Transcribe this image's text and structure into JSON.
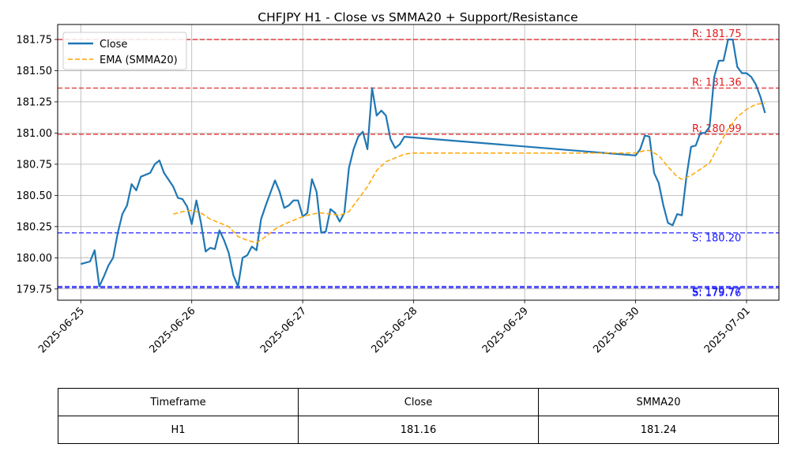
{
  "chart_data": {
    "type": "line",
    "title": "CHFJPY H1 - Close vs SMMA20 + Support/Resistance",
    "xlabel": "",
    "ylabel": "",
    "grid": true,
    "legend_position": "top-left",
    "xlim": [
      "2025-06-24T19:00",
      "2025-07-01T07:00"
    ],
    "ylim": [
      179.66,
      181.87
    ],
    "x_ticks": [
      "2025-06-25",
      "2025-06-26",
      "2025-06-27",
      "2025-06-28",
      "2025-06-29",
      "2025-06-30",
      "2025-07-01"
    ],
    "y_ticks": [
      "179.75",
      "180.00",
      "180.25",
      "180.50",
      "180.75",
      "181.00",
      "181.25",
      "181.50",
      "181.75"
    ],
    "series": [
      {
        "name": "Close",
        "color": "#1f77b4",
        "style": "solid",
        "points": [
          [
            "2025-06-25T00:00",
            179.95
          ],
          [
            "2025-06-25T02:00",
            179.97
          ],
          [
            "2025-06-25T03:00",
            180.06
          ],
          [
            "2025-06-25T04:00",
            179.77
          ],
          [
            "2025-06-25T05:00",
            179.85
          ],
          [
            "2025-06-25T06:00",
            179.94
          ],
          [
            "2025-06-25T07:00",
            180.0
          ],
          [
            "2025-06-25T08:00",
            180.2
          ],
          [
            "2025-06-25T09:00",
            180.35
          ],
          [
            "2025-06-25T10:00",
            180.42
          ],
          [
            "2025-06-25T11:00",
            180.59
          ],
          [
            "2025-06-25T12:00",
            180.54
          ],
          [
            "2025-06-25T13:00",
            180.65
          ],
          [
            "2025-06-25T15:00",
            180.68
          ],
          [
            "2025-06-25T16:00",
            180.75
          ],
          [
            "2025-06-25T17:00",
            180.78
          ],
          [
            "2025-06-25T18:00",
            180.68
          ],
          [
            "2025-06-25T20:00",
            180.57
          ],
          [
            "2025-06-25T21:00",
            180.48
          ],
          [
            "2025-06-25T22:00",
            180.47
          ],
          [
            "2025-06-25T23:00",
            180.41
          ],
          [
            "2025-06-26T00:00",
            180.27
          ],
          [
            "2025-06-26T01:00",
            180.46
          ],
          [
            "2025-06-26T02:00",
            180.28
          ],
          [
            "2025-06-26T03:00",
            180.05
          ],
          [
            "2025-06-26T04:00",
            180.08
          ],
          [
            "2025-06-26T05:00",
            180.07
          ],
          [
            "2025-06-26T06:00",
            180.22
          ],
          [
            "2025-06-26T07:00",
            180.14
          ],
          [
            "2025-06-26T08:00",
            180.04
          ],
          [
            "2025-06-26T09:00",
            179.86
          ],
          [
            "2025-06-26T10:00",
            179.77
          ],
          [
            "2025-06-26T11:00",
            180.0
          ],
          [
            "2025-06-26T12:00",
            180.02
          ],
          [
            "2025-06-26T13:00",
            180.09
          ],
          [
            "2025-06-26T14:00",
            180.06
          ],
          [
            "2025-06-26T15:00",
            180.31
          ],
          [
            "2025-06-26T16:00",
            180.42
          ],
          [
            "2025-06-26T17:00",
            180.52
          ],
          [
            "2025-06-26T18:00",
            180.62
          ],
          [
            "2025-06-26T19:00",
            180.53
          ],
          [
            "2025-06-26T20:00",
            180.4
          ],
          [
            "2025-06-26T21:00",
            180.42
          ],
          [
            "2025-06-26T22:00",
            180.46
          ],
          [
            "2025-06-26T23:00",
            180.46
          ],
          [
            "2025-06-27T00:00",
            180.33
          ],
          [
            "2025-06-27T01:00",
            180.36
          ],
          [
            "2025-06-27T02:00",
            180.63
          ],
          [
            "2025-06-27T03:00",
            180.53
          ],
          [
            "2025-06-27T04:00",
            180.2
          ],
          [
            "2025-06-27T05:00",
            180.21
          ],
          [
            "2025-06-27T06:00",
            180.39
          ],
          [
            "2025-06-27T07:00",
            180.36
          ],
          [
            "2025-06-27T08:00",
            180.29
          ],
          [
            "2025-06-27T09:00",
            180.36
          ],
          [
            "2025-06-27T10:00",
            180.72
          ],
          [
            "2025-06-27T11:00",
            180.87
          ],
          [
            "2025-06-27T12:00",
            180.97
          ],
          [
            "2025-06-27T13:00",
            181.01
          ],
          [
            "2025-06-27T14:00",
            180.87
          ],
          [
            "2025-06-27T15:00",
            181.36
          ],
          [
            "2025-06-27T16:00",
            181.14
          ],
          [
            "2025-06-27T17:00",
            181.18
          ],
          [
            "2025-06-27T18:00",
            181.14
          ],
          [
            "2025-06-27T19:00",
            180.95
          ],
          [
            "2025-06-27T20:00",
            180.88
          ],
          [
            "2025-06-27T21:00",
            180.91
          ],
          [
            "2025-06-27T22:00",
            180.97
          ],
          [
            "2025-06-30T00:00",
            180.82
          ],
          [
            "2025-06-30T01:00",
            180.87
          ],
          [
            "2025-06-30T02:00",
            180.98
          ],
          [
            "2025-06-30T03:00",
            180.97
          ],
          [
            "2025-06-30T04:00",
            180.68
          ],
          [
            "2025-06-30T05:00",
            180.6
          ],
          [
            "2025-06-30T06:00",
            180.42
          ],
          [
            "2025-06-30T07:00",
            180.28
          ],
          [
            "2025-06-30T08:00",
            180.26
          ],
          [
            "2025-06-30T09:00",
            180.35
          ],
          [
            "2025-06-30T10:00",
            180.34
          ],
          [
            "2025-06-30T11:00",
            180.65
          ],
          [
            "2025-06-30T12:00",
            180.89
          ],
          [
            "2025-06-30T13:00",
            180.9
          ],
          [
            "2025-06-30T14:00",
            181.0
          ],
          [
            "2025-06-30T15:00",
            181.0
          ],
          [
            "2025-06-30T16:00",
            181.05
          ],
          [
            "2025-06-30T17:00",
            181.45
          ],
          [
            "2025-06-30T18:00",
            181.58
          ],
          [
            "2025-06-30T19:00",
            181.58
          ],
          [
            "2025-06-30T20:00",
            181.75
          ],
          [
            "2025-06-30T21:00",
            181.75
          ],
          [
            "2025-06-30T22:00",
            181.53
          ],
          [
            "2025-06-30T23:00",
            181.48
          ],
          [
            "2025-07-01T00:00",
            181.48
          ],
          [
            "2025-07-01T01:00",
            181.45
          ],
          [
            "2025-07-01T02:00",
            181.39
          ],
          [
            "2025-07-01T03:00",
            181.29
          ],
          [
            "2025-07-01T04:00",
            181.16
          ]
        ]
      },
      {
        "name": "EMA (SMMA20)",
        "color": "#ffa500",
        "style": "dashed",
        "points": [
          [
            "2025-06-25T20:00",
            180.35
          ],
          [
            "2025-06-25T22:00",
            180.37
          ],
          [
            "2025-06-26T00:00",
            180.38
          ],
          [
            "2025-06-26T02:00",
            180.36
          ],
          [
            "2025-06-26T04:00",
            180.31
          ],
          [
            "2025-06-26T06:00",
            180.28
          ],
          [
            "2025-06-26T08:00",
            180.25
          ],
          [
            "2025-06-26T10:00",
            180.17
          ],
          [
            "2025-06-26T12:00",
            180.14
          ],
          [
            "2025-06-26T14:00",
            180.12
          ],
          [
            "2025-06-26T16:00",
            180.17
          ],
          [
            "2025-06-26T18:00",
            180.23
          ],
          [
            "2025-06-26T20:00",
            180.27
          ],
          [
            "2025-06-26T22:00",
            180.3
          ],
          [
            "2025-06-27T00:00",
            180.33
          ],
          [
            "2025-06-27T02:00",
            180.35
          ],
          [
            "2025-06-27T04:00",
            180.36
          ],
          [
            "2025-06-27T06:00",
            180.35
          ],
          [
            "2025-06-27T08:00",
            180.34
          ],
          [
            "2025-06-27T10:00",
            180.37
          ],
          [
            "2025-06-27T12:00",
            180.47
          ],
          [
            "2025-06-27T14:00",
            180.57
          ],
          [
            "2025-06-27T16:00",
            180.7
          ],
          [
            "2025-06-27T18:00",
            180.77
          ],
          [
            "2025-06-27T20:00",
            180.8
          ],
          [
            "2025-06-27T22:00",
            180.83
          ],
          [
            "2025-06-28T00:00",
            180.84
          ],
          [
            "2025-06-30T00:00",
            180.84
          ],
          [
            "2025-06-30T02:00",
            180.86
          ],
          [
            "2025-06-30T03:00",
            180.86
          ],
          [
            "2025-06-30T05:00",
            180.82
          ],
          [
            "2025-06-30T07:00",
            180.73
          ],
          [
            "2025-06-30T09:00",
            180.65
          ],
          [
            "2025-06-30T10:00",
            180.63
          ],
          [
            "2025-06-30T12:00",
            180.66
          ],
          [
            "2025-06-30T14:00",
            180.71
          ],
          [
            "2025-06-30T16:00",
            180.76
          ],
          [
            "2025-06-30T18:00",
            180.9
          ],
          [
            "2025-06-30T20:00",
            181.03
          ],
          [
            "2025-06-30T22:00",
            181.13
          ],
          [
            "2025-07-01T00:00",
            181.19
          ],
          [
            "2025-07-01T02:00",
            181.23
          ],
          [
            "2025-07-01T04:00",
            181.24
          ]
        ]
      }
    ],
    "levels": [
      {
        "type": "resistance",
        "value": 181.75,
        "label": "R: 181.75",
        "color": "#e41a1c"
      },
      {
        "type": "resistance",
        "value": 181.36,
        "label": "R: 181.36",
        "color": "#e41a1c"
      },
      {
        "type": "resistance",
        "value": 180.99,
        "label": "R: 180.99",
        "color": "#e41a1c"
      },
      {
        "type": "support",
        "value": 180.2,
        "label": "S: 180.20",
        "color": "#1a1aff"
      },
      {
        "type": "support",
        "value": 179.77,
        "label": "S: 179.77",
        "color": "#1a1aff"
      },
      {
        "type": "support",
        "value": 179.76,
        "label": "S: 179.76",
        "color": "#1a1aff"
      }
    ]
  },
  "table": {
    "headers": [
      "Timeframe",
      "Close",
      "SMMA20"
    ],
    "row": [
      "H1",
      "181.16",
      "181.24"
    ]
  }
}
